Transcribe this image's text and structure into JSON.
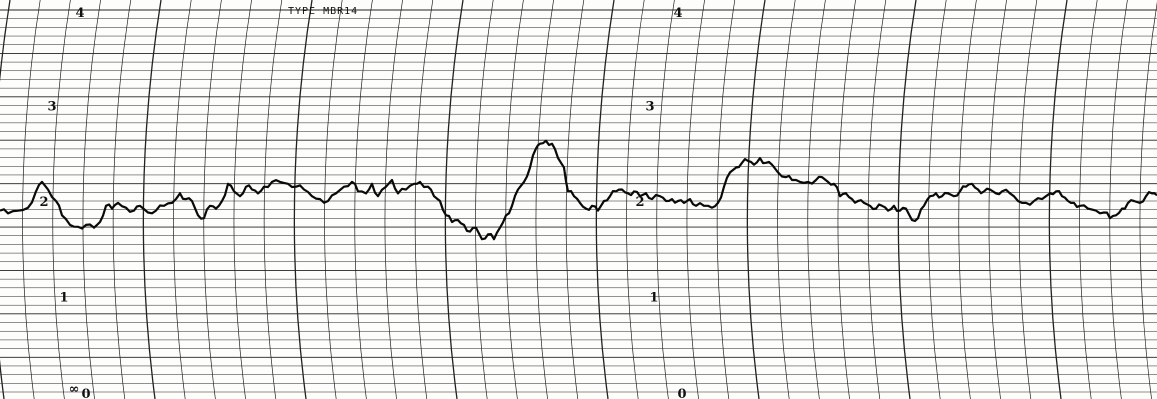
{
  "chart_data": {
    "type": "line",
    "title": "TYPE MBR14",
    "xlabel": "",
    "ylabel": "",
    "ylim": [
      0,
      4
    ],
    "grid": true,
    "legend": "none",
    "y_tick_labels": [
      {
        "value": 4,
        "label": "4"
      },
      {
        "value": 3,
        "label": "3"
      },
      {
        "value": 2,
        "label": "2"
      },
      {
        "value": 1,
        "label": "1"
      },
      {
        "value": 0,
        "label": "0"
      }
    ],
    "extra_label": "∞",
    "series": [
      {
        "values": [
          [
            0,
            1.9
          ],
          [
            8,
            1.87
          ],
          [
            18,
            1.9
          ],
          [
            28,
            1.93
          ],
          [
            36,
            2.1
          ],
          [
            42,
            2.2
          ],
          [
            48,
            2.12
          ],
          [
            56,
            2.0
          ],
          [
            62,
            1.85
          ],
          [
            70,
            1.75
          ],
          [
            78,
            1.73
          ],
          [
            86,
            1.75
          ],
          [
            94,
            1.72
          ],
          [
            100,
            1.78
          ],
          [
            106,
            1.95
          ],
          [
            112,
            1.92
          ],
          [
            118,
            1.98
          ],
          [
            126,
            1.93
          ],
          [
            134,
            1.9
          ],
          [
            140,
            1.95
          ],
          [
            148,
            1.88
          ],
          [
            156,
            1.9
          ],
          [
            164,
            1.95
          ],
          [
            172,
            1.98
          ],
          [
            180,
            2.08
          ],
          [
            186,
            2.02
          ],
          [
            192,
            2.0
          ],
          [
            198,
            1.85
          ],
          [
            204,
            1.82
          ],
          [
            210,
            1.95
          ],
          [
            216,
            1.92
          ],
          [
            222,
            2.0
          ],
          [
            228,
            2.18
          ],
          [
            234,
            2.1
          ],
          [
            240,
            2.05
          ],
          [
            246,
            2.15
          ],
          [
            252,
            2.12
          ],
          [
            258,
            2.08
          ],
          [
            264,
            2.15
          ],
          [
            272,
            2.2
          ],
          [
            280,
            2.2
          ],
          [
            288,
            2.18
          ],
          [
            296,
            2.15
          ],
          [
            304,
            2.12
          ],
          [
            312,
            2.05
          ],
          [
            320,
            2.02
          ],
          [
            328,
            2.0
          ],
          [
            336,
            2.08
          ],
          [
            344,
            2.15
          ],
          [
            352,
            2.2
          ],
          [
            358,
            2.1
          ],
          [
            366,
            2.08
          ],
          [
            372,
            2.18
          ],
          [
            378,
            2.05
          ],
          [
            386,
            2.15
          ],
          [
            392,
            2.22
          ],
          [
            398,
            2.08
          ],
          [
            406,
            2.12
          ],
          [
            414,
            2.18
          ],
          [
            420,
            2.2
          ],
          [
            428,
            2.15
          ],
          [
            434,
            2.05
          ],
          [
            440,
            2.0
          ],
          [
            446,
            1.85
          ],
          [
            452,
            1.78
          ],
          [
            458,
            1.8
          ],
          [
            464,
            1.75
          ],
          [
            470,
            1.68
          ],
          [
            476,
            1.72
          ],
          [
            482,
            1.6
          ],
          [
            488,
            1.65
          ],
          [
            494,
            1.6
          ],
          [
            500,
            1.72
          ],
          [
            506,
            1.85
          ],
          [
            512,
            1.95
          ],
          [
            518,
            2.12
          ],
          [
            524,
            2.2
          ],
          [
            530,
            2.35
          ],
          [
            536,
            2.55
          ],
          [
            540,
            2.6
          ],
          [
            546,
            2.63
          ],
          [
            552,
            2.6
          ],
          [
            558,
            2.45
          ],
          [
            564,
            2.35
          ],
          [
            568,
            2.1
          ],
          [
            574,
            2.05
          ],
          [
            580,
            1.98
          ],
          [
            586,
            1.92
          ],
          [
            592,
            1.95
          ],
          [
            598,
            1.9
          ],
          [
            604,
            2.0
          ],
          [
            610,
            2.05
          ],
          [
            616,
            2.1
          ],
          [
            622,
            2.12
          ],
          [
            628,
            2.08
          ],
          [
            634,
            2.1
          ],
          [
            640,
            2.05
          ],
          [
            646,
            2.08
          ],
          [
            652,
            2.02
          ],
          [
            660,
            2.05
          ],
          [
            666,
            2.0
          ],
          [
            672,
            2.02
          ],
          [
            678,
            2.0
          ],
          [
            684,
            1.98
          ],
          [
            690,
            2.02
          ],
          [
            696,
            1.95
          ],
          [
            704,
            1.95
          ],
          [
            712,
            1.93
          ],
          [
            718,
            1.98
          ],
          [
            724,
            2.15
          ],
          [
            730,
            2.3
          ],
          [
            736,
            2.35
          ],
          [
            742,
            2.4
          ],
          [
            748,
            2.42
          ],
          [
            754,
            2.38
          ],
          [
            760,
            2.45
          ],
          [
            766,
            2.4
          ],
          [
            772,
            2.38
          ],
          [
            778,
            2.3
          ],
          [
            786,
            2.25
          ],
          [
            792,
            2.22
          ],
          [
            800,
            2.2
          ],
          [
            808,
            2.2
          ],
          [
            816,
            2.22
          ],
          [
            822,
            2.25
          ],
          [
            828,
            2.2
          ],
          [
            834,
            2.18
          ],
          [
            840,
            2.05
          ],
          [
            846,
            2.08
          ],
          [
            852,
            2.02
          ],
          [
            858,
            2.0
          ],
          [
            864,
            1.98
          ],
          [
            870,
            1.95
          ],
          [
            876,
            1.92
          ],
          [
            882,
            1.95
          ],
          [
            888,
            1.9
          ],
          [
            894,
            1.95
          ],
          [
            900,
            1.9
          ],
          [
            906,
            1.92
          ],
          [
            912,
            1.8
          ],
          [
            918,
            1.82
          ],
          [
            924,
            1.95
          ],
          [
            930,
            2.05
          ],
          [
            936,
            2.08
          ],
          [
            942,
            2.05
          ],
          [
            948,
            2.08
          ],
          [
            954,
            2.05
          ],
          [
            960,
            2.1
          ],
          [
            966,
            2.15
          ],
          [
            972,
            2.18
          ],
          [
            978,
            2.12
          ],
          [
            984,
            2.1
          ],
          [
            990,
            2.12
          ],
          [
            996,
            2.08
          ],
          [
            1002,
            2.1
          ],
          [
            1010,
            2.08
          ],
          [
            1018,
            2.0
          ],
          [
            1026,
            1.98
          ],
          [
            1034,
            2.0
          ],
          [
            1042,
            2.02
          ],
          [
            1050,
            2.08
          ],
          [
            1056,
            2.1
          ],
          [
            1062,
            2.05
          ],
          [
            1068,
            2.0
          ],
          [
            1074,
            1.98
          ],
          [
            1080,
            1.95
          ],
          [
            1088,
            1.92
          ],
          [
            1096,
            1.9
          ],
          [
            1104,
            1.88
          ],
          [
            1110,
            1.82
          ],
          [
            1116,
            1.85
          ],
          [
            1122,
            1.92
          ],
          [
            1128,
            1.98
          ],
          [
            1134,
            2.0
          ],
          [
            1140,
            1.98
          ],
          [
            1146,
            2.05
          ],
          [
            1152,
            2.08
          ],
          [
            1157,
            2.06
          ]
        ]
      }
    ]
  },
  "paper": {
    "colors": {
      "background": "#fdfdfb",
      "grid": "#222222",
      "trace": "#0a0a0a"
    }
  }
}
